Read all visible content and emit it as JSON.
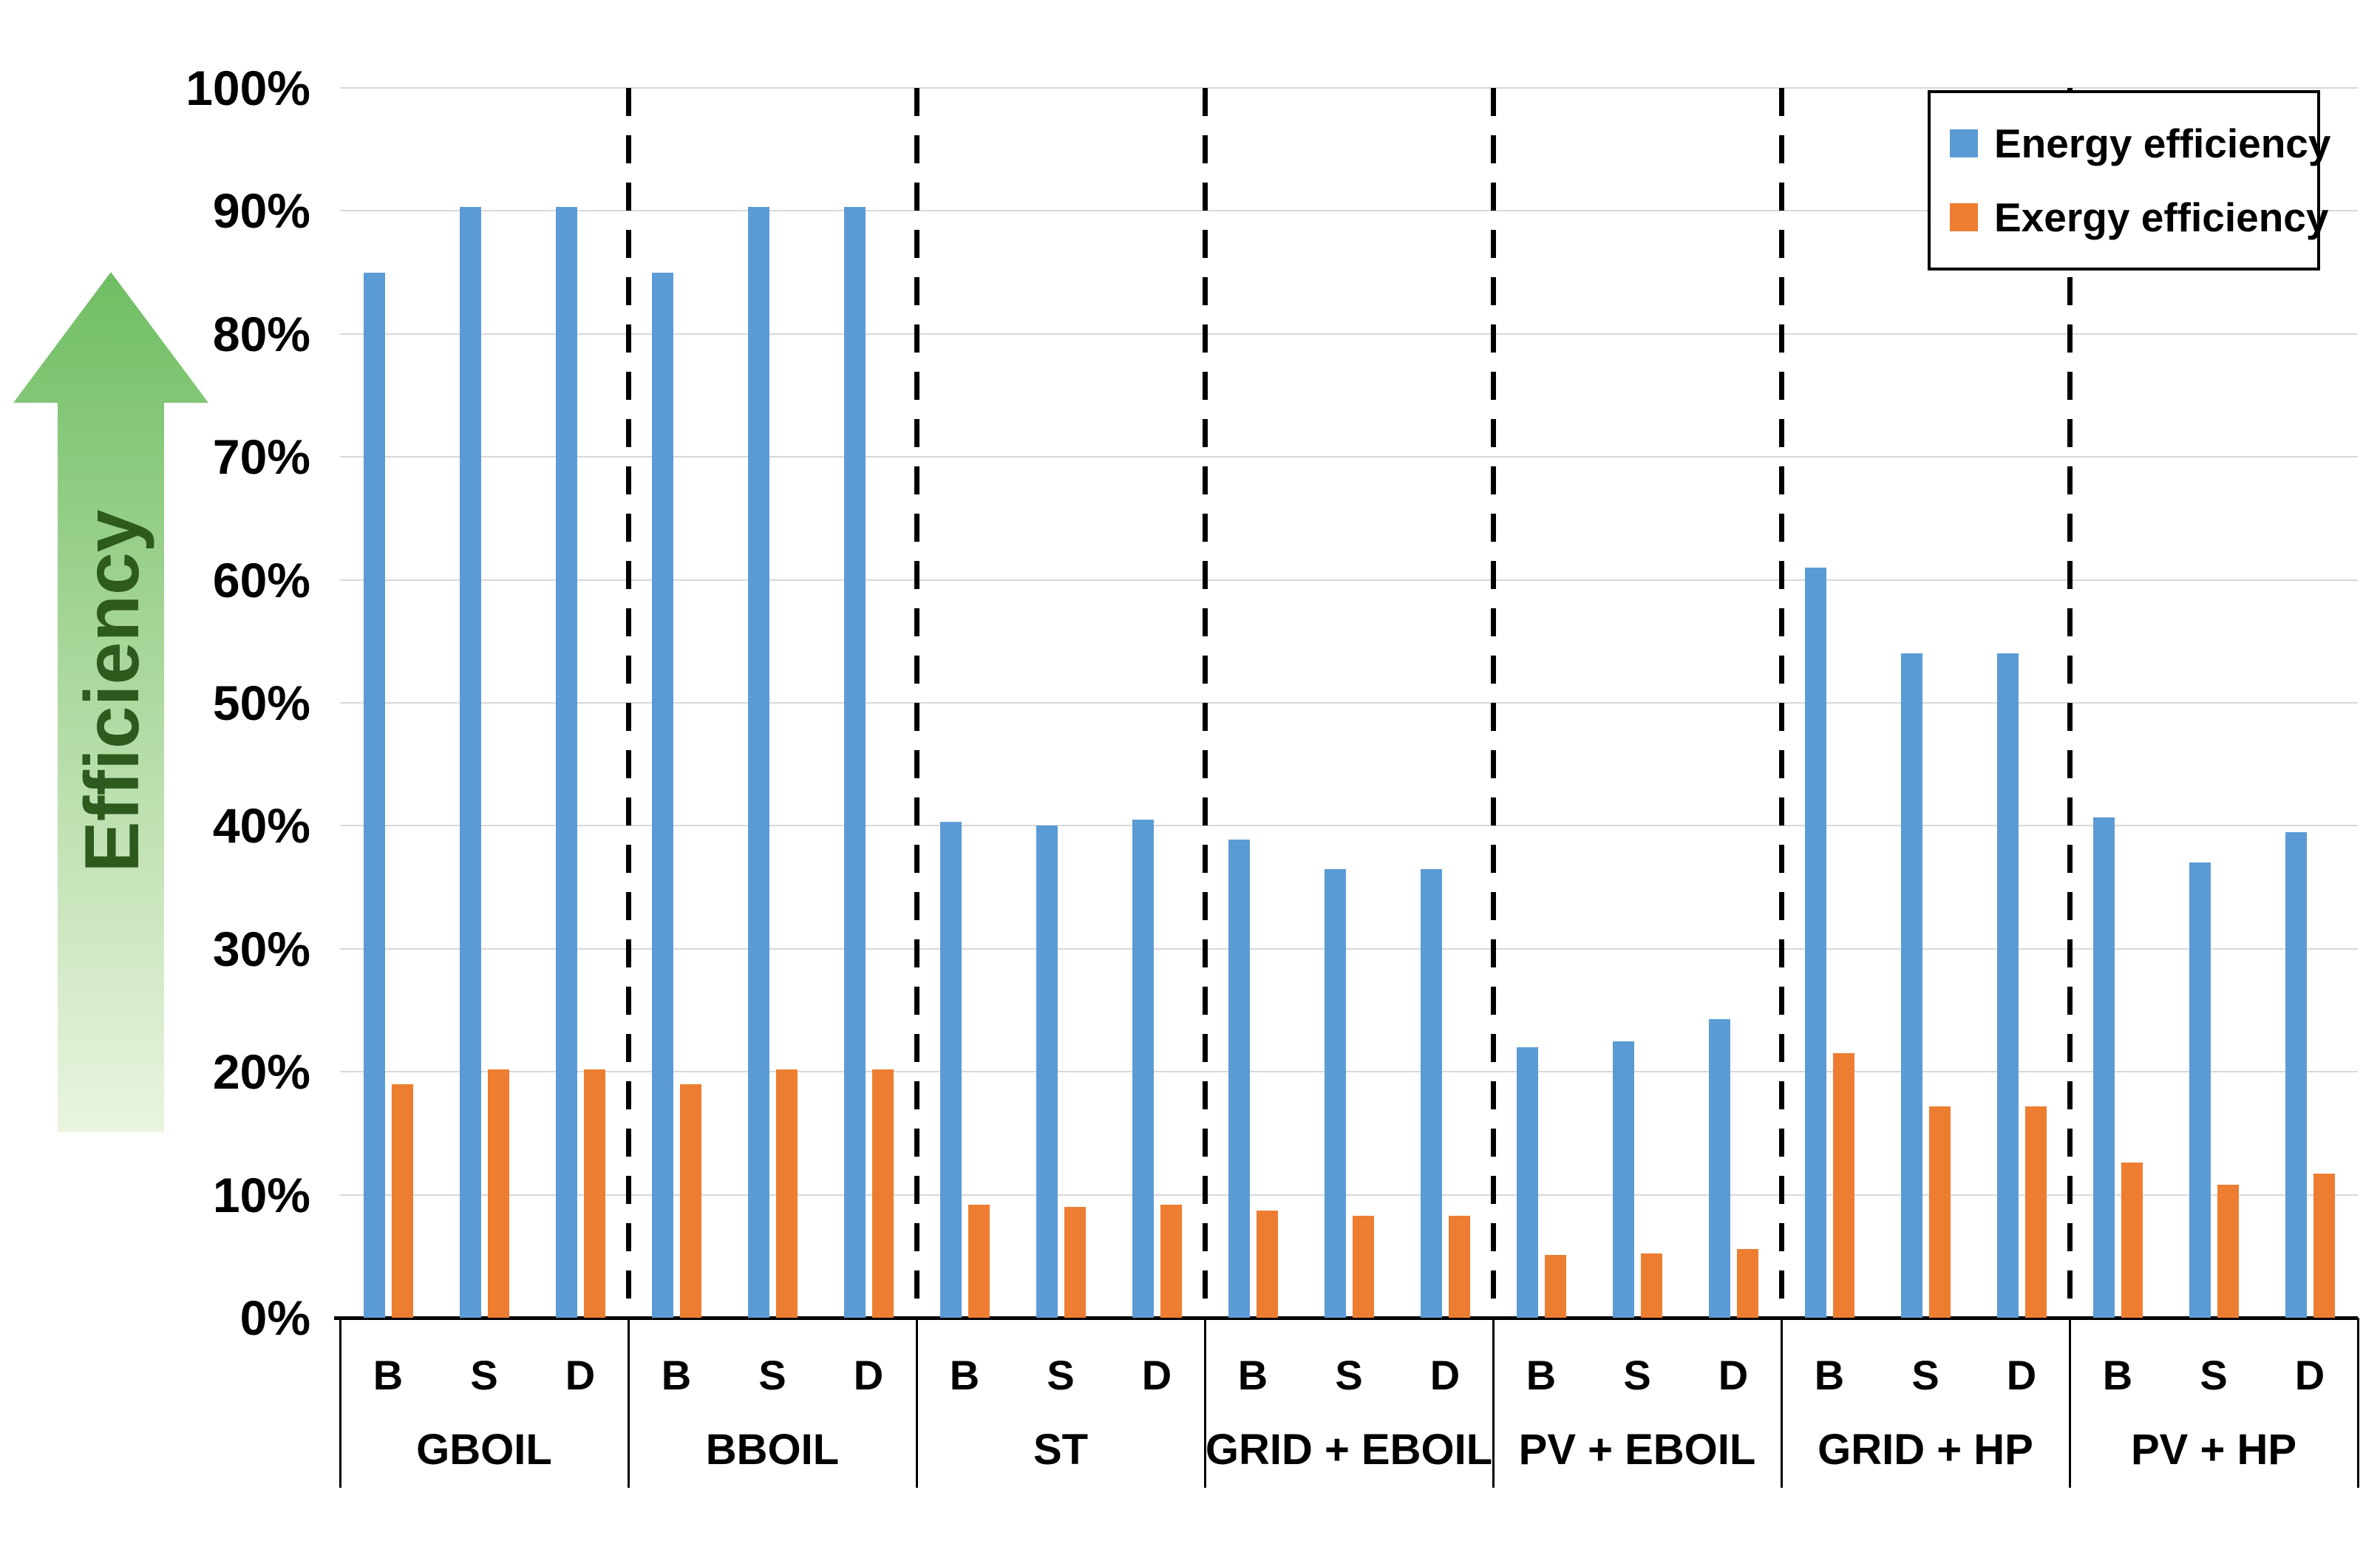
{
  "chart_data": {
    "type": "bar",
    "title": "",
    "ylabel": "Efficiency",
    "xlabel": "",
    "ylim": [
      0,
      100
    ],
    "grid": true,
    "legend_position": "top-right",
    "y_ticks": [
      "100%",
      "90%",
      "80%",
      "70%",
      "60%",
      "50%",
      "40%",
      "30%",
      "20%",
      "10%",
      "0%"
    ],
    "categories": [
      "GBOIL",
      "BBOIL",
      "ST",
      "GRID + EBOIL",
      "PV + EBOIL",
      "GRID + HP",
      "PV + HP"
    ],
    "sub_categories": [
      "B",
      "S",
      "D"
    ],
    "series": [
      {
        "name": "Energy efficiency",
        "color": "#5B9BD5",
        "values": [
          [
            85.0,
            90.3,
            90.3
          ],
          [
            85.0,
            90.3,
            90.3
          ],
          [
            40.3,
            40.0,
            40.5
          ],
          [
            38.9,
            36.5,
            36.5
          ],
          [
            22.0,
            22.5,
            24.3
          ],
          [
            61.0,
            54.0,
            54.0
          ],
          [
            40.7,
            37.0,
            39.5
          ]
        ]
      },
      {
        "name": "Exergy efficiency",
        "color": "#ED7D31",
        "values": [
          [
            19.0,
            20.2,
            20.2
          ],
          [
            19.0,
            20.2,
            20.2
          ],
          [
            9.2,
            9.0,
            9.2
          ],
          [
            8.7,
            8.3,
            8.3
          ],
          [
            5.1,
            5.2,
            5.6
          ],
          [
            21.5,
            17.2,
            17.2
          ],
          [
            12.6,
            10.8,
            11.7
          ]
        ]
      }
    ]
  },
  "arrow": {
    "label": "Efficiency",
    "text_color": "#2E5B1D",
    "gradient_top": "#6FBE63",
    "gradient_bottom": "#EAF4DF"
  },
  "colors": {
    "energy": "#5B9BD5",
    "exergy": "#ED7D31",
    "gridline": "#d8d8d8",
    "axis": "#000000"
  }
}
